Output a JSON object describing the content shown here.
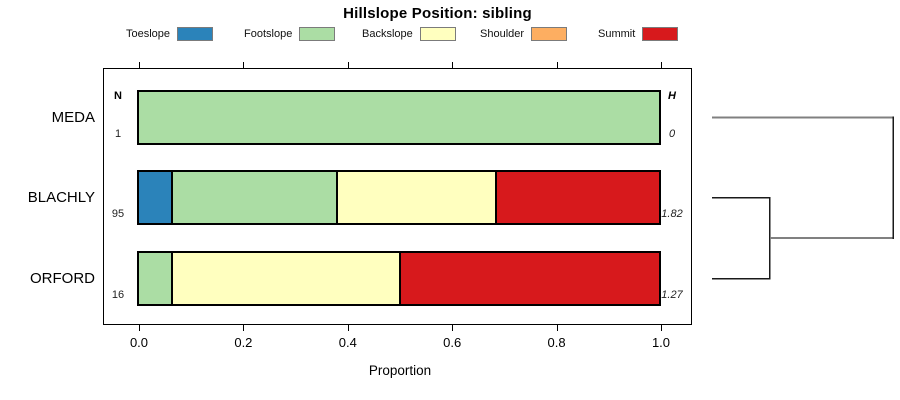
{
  "title": "Hillslope Position: sibling",
  "legend": [
    {
      "label": "Toeslope",
      "color": "#2B83BA"
    },
    {
      "label": "Footslope",
      "color": "#ABDDA4"
    },
    {
      "label": "Backslope",
      "color": "#FFFFBF"
    },
    {
      "label": "Shoulder",
      "color": "#FDAE61"
    },
    {
      "label": "Summit",
      "color": "#D7191C"
    }
  ],
  "annotations": {
    "n_header": "N",
    "h_header": "H"
  },
  "axis": {
    "label": "Proportion",
    "ticks": [
      {
        "label": "0.0",
        "value": 0
      },
      {
        "label": "0.2",
        "value": 0.2
      },
      {
        "label": "0.4",
        "value": 0.4
      },
      {
        "label": "0.6",
        "value": 0.6
      },
      {
        "label": "0.8",
        "value": 0.8
      },
      {
        "label": "1.0",
        "value": 1
      }
    ]
  },
  "chart_data": {
    "type": "bar",
    "stacked": true,
    "orientation": "horizontal",
    "title": "Hillslope Position: sibling",
    "xlabel": "Proportion",
    "xlim": [
      0,
      1
    ],
    "legend_position": "top",
    "categories": [
      "MEDA",
      "BLACHLY",
      "ORFORD"
    ],
    "sample_sizes": [
      1,
      95,
      16
    ],
    "shannon_entropy_labels": [
      "0",
      "1.82",
      "1.27"
    ],
    "shannon_entropy_values": [
      0,
      1.82,
      1.27
    ],
    "series": [
      {
        "name": "Toeslope",
        "color": "#2B83BA",
        "values": [
          0,
          0.0632,
          0
        ]
      },
      {
        "name": "Footslope",
        "color": "#ABDDA4",
        "values": [
          1,
          0.3158,
          0.0625
        ]
      },
      {
        "name": "Backslope",
        "color": "#FFFFBF",
        "values": [
          0,
          0.3053,
          0.4375
        ]
      },
      {
        "name": "Shoulder",
        "color": "#FDAE61",
        "values": [
          0,
          0,
          0
        ]
      },
      {
        "name": "Summit",
        "color": "#D7191C",
        "values": [
          0,
          0.3158,
          0.5
        ]
      }
    ],
    "dendrogram": {
      "leaf_order": [
        "MEDA",
        "BLACHLY",
        "ORFORD"
      ],
      "merges": [
        {
          "members": [
            "BLACHLY",
            "ORFORD"
          ],
          "rel_height": 0.32
        },
        {
          "members": [
            "MEDA",
            "(BLACHLY,ORFORD)"
          ],
          "rel_height": 1.0
        }
      ],
      "colors": {
        "meda_leaf": "#808080",
        "cluster_lines": "#1a1a1a",
        "connector": "#808080",
        "root_line": "#1a1a1a"
      }
    }
  }
}
